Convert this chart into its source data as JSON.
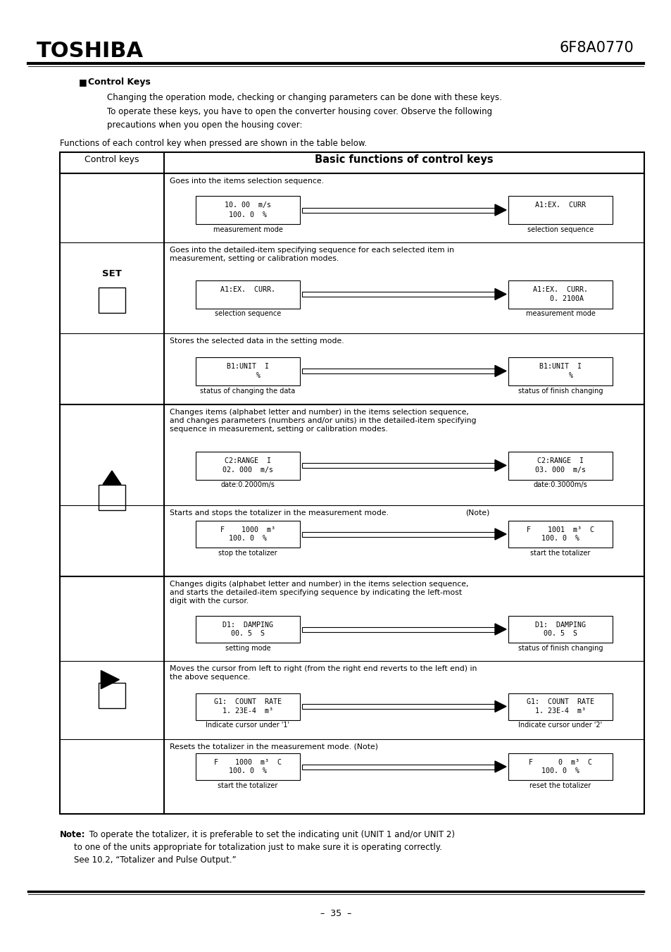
{
  "title_company": "TOSHIBA",
  "title_code": "6F8A0770",
  "section_bullet": "■",
  "section_header": "Control Keys",
  "para1": "Changing the operation mode, checking or changing parameters can be done with these keys.",
  "para2": "To operate these keys, you have to open the converter housing cover. Observe the following",
  "para3": "precautions when you open the housing cover:",
  "table_intro": "Functions of each control key when pressed are shown in the table below.",
  "col1_header": "Control keys",
  "col2_header": "Basic functions of control keys",
  "background": "#ffffff",
  "text_color": "#000000",
  "note_bold": "Note:",
  "note_text1": " To operate the totalizer, it is preferable to set the indicating unit (UNIT 1 and/or UNIT 2)",
  "note_text2": "to one of the units appropriate for totalization just to make sure it is operating correctly.",
  "note_text3": "See 10.2, “Totalizer and Pulse Output.”",
  "page_number": "35",
  "figw": 9.54,
  "figh": 13.51,
  "dpi": 100
}
